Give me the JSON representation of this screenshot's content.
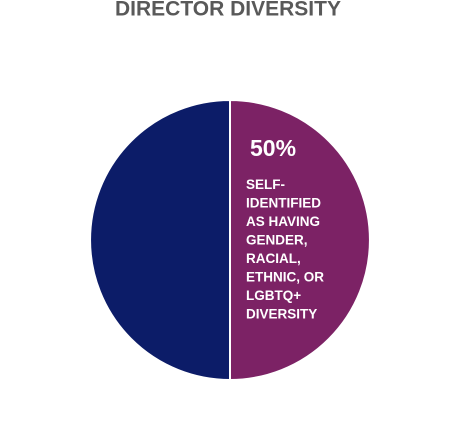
{
  "chart_data": {
    "type": "pie",
    "title": "DIRECTOR DIVERSITY",
    "categories": [
      "SELF-IDENTIFIED AS HAVING GENDER, RACIAL, ETHNIC, OR LGBTQ+ DIVERSITY",
      null
    ],
    "values": [
      50,
      50
    ],
    "value_labels": [
      "50%",
      null
    ],
    "colors": [
      "#7c2265",
      "#0c1c68"
    ]
  }
}
